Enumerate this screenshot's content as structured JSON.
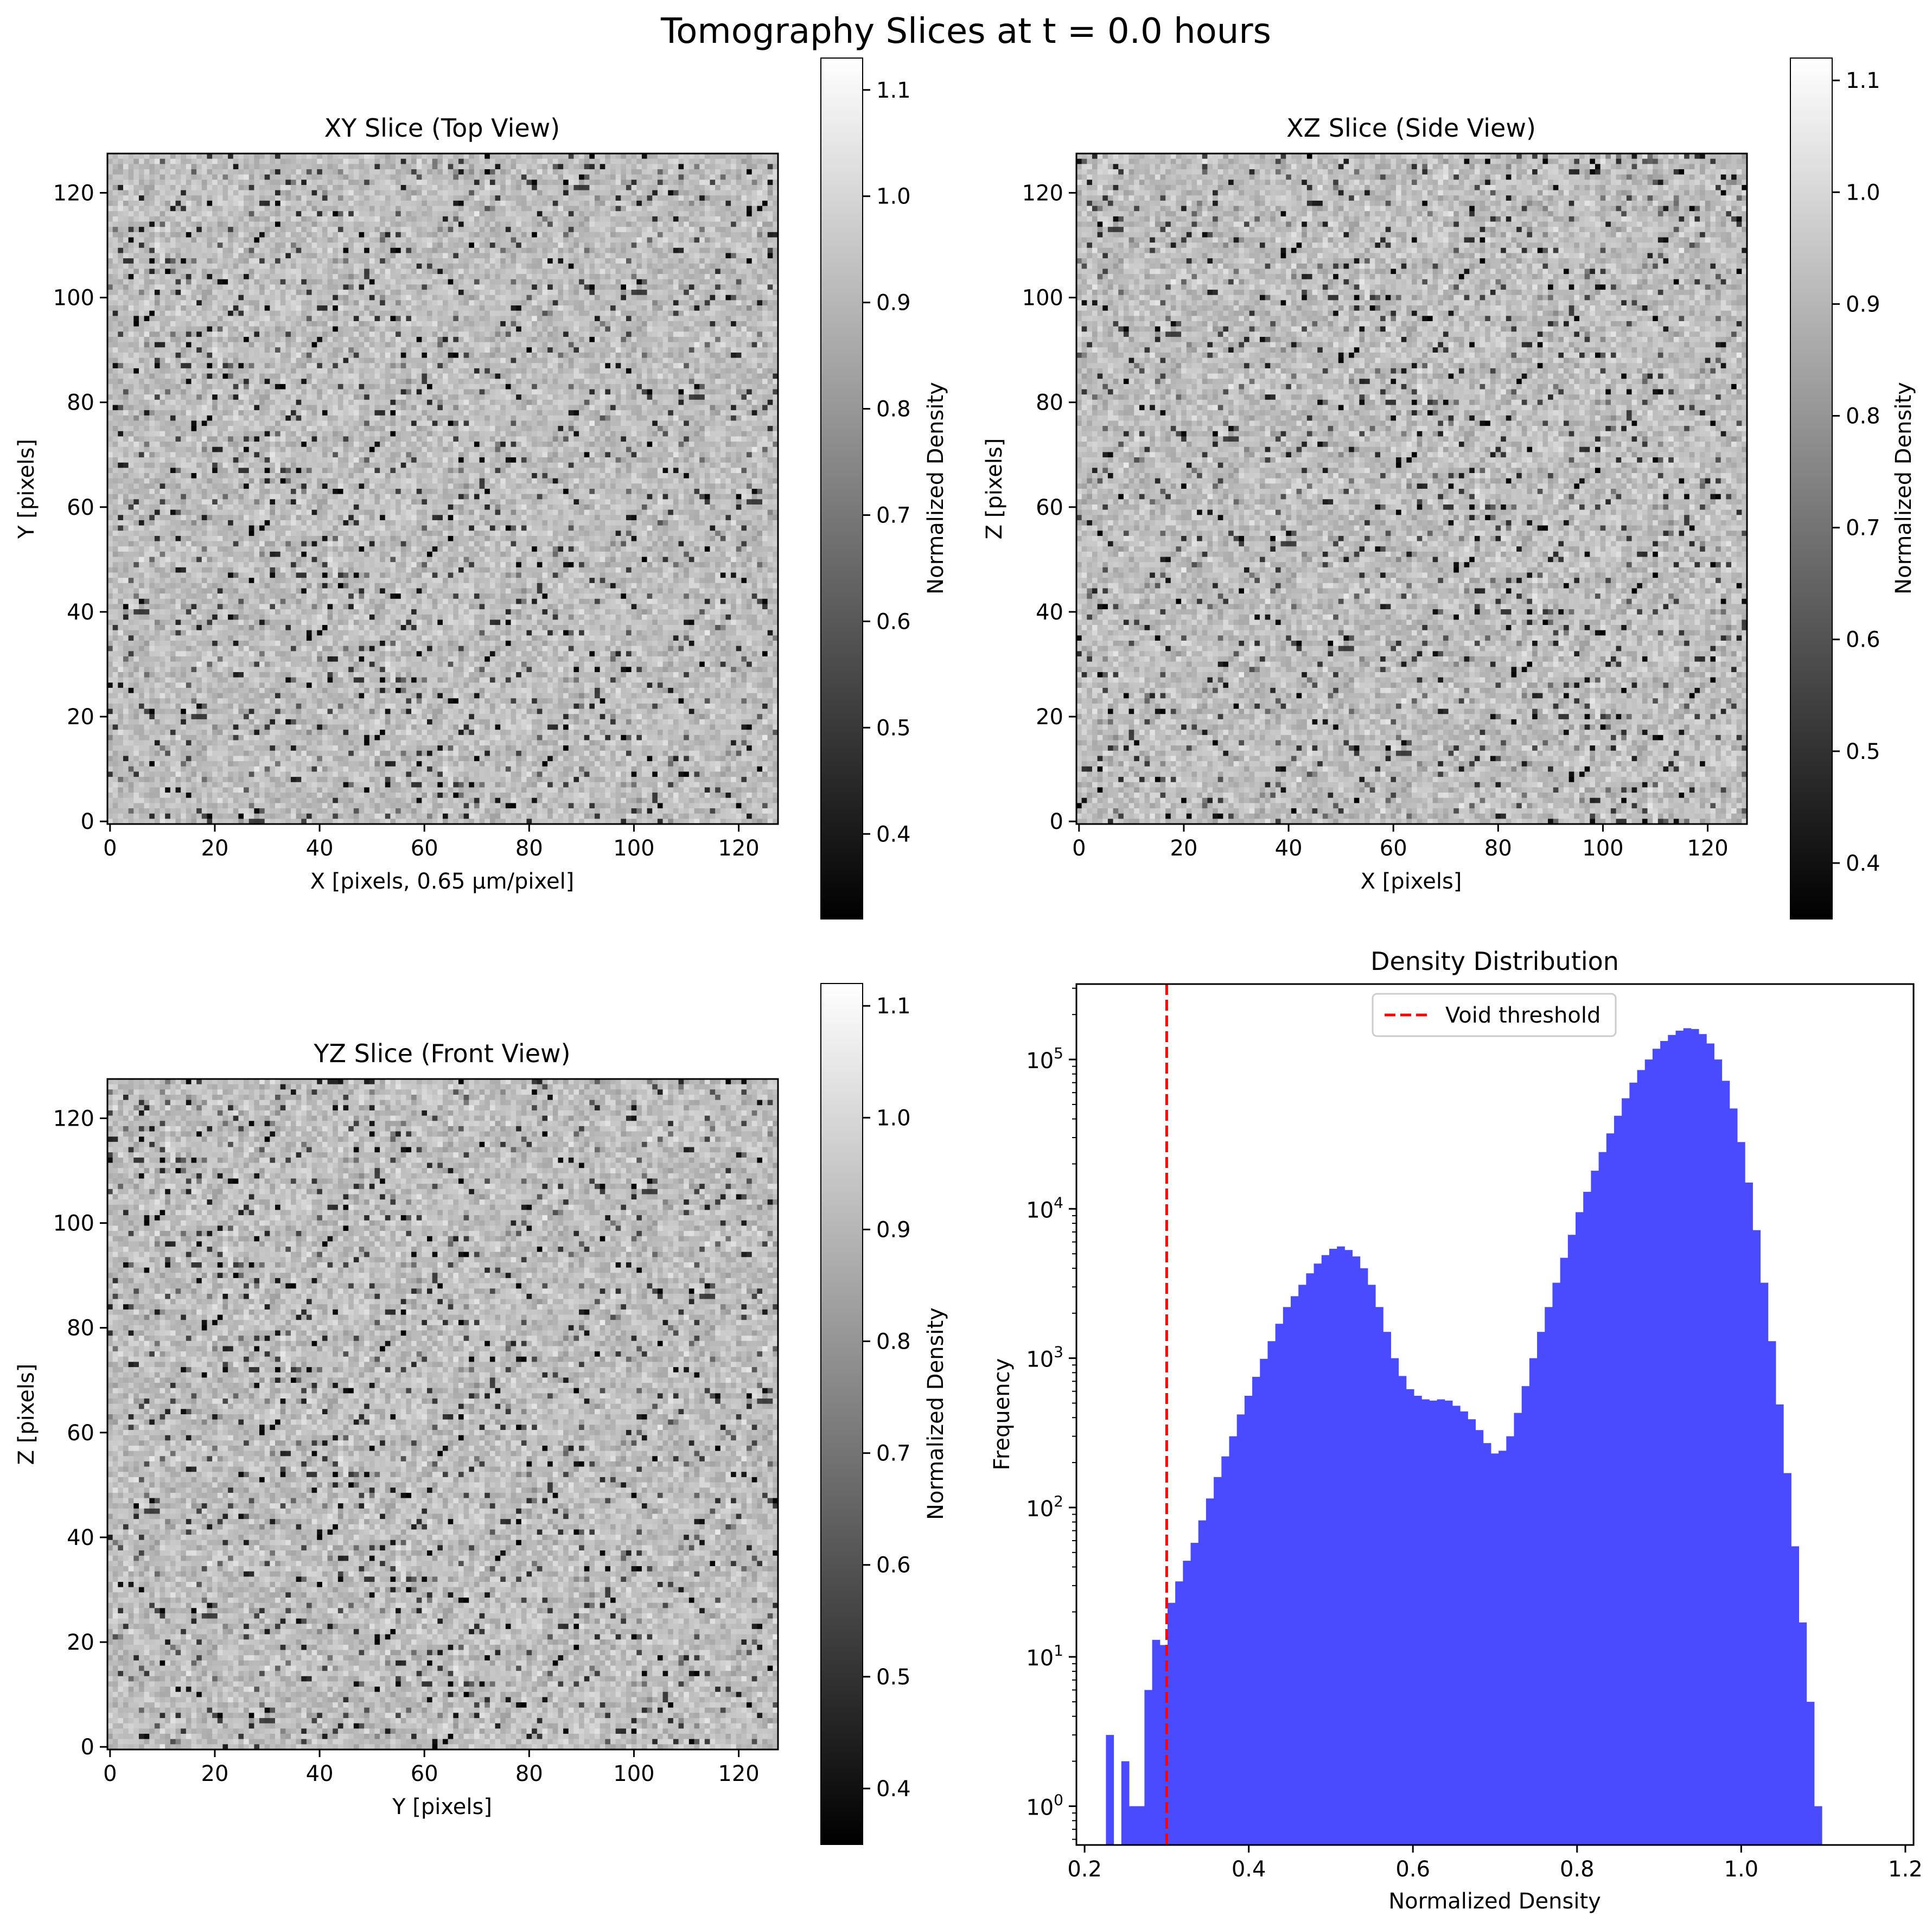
{
  "suptitle": "Tomography Slices at t = 0.0 hours",
  "chart_data": [
    {
      "type": "heatmap",
      "title": "XY Slice (Top View)",
      "xlabel": "X [pixels, 0.65 μm/pixel]",
      "ylabel": "Y [pixels]",
      "xlim": [
        0,
        127
      ],
      "ylim": [
        0,
        127
      ],
      "xticks": [
        0,
        20,
        40,
        60,
        80,
        100,
        120
      ],
      "yticks": [
        0,
        20,
        40,
        60,
        80,
        100,
        120
      ],
      "colormap": "gray",
      "grid_size": [
        128,
        128
      ],
      "colorbar": {
        "label": "Normalized Density",
        "range": [
          0.32,
          1.13
        ],
        "ticks": [
          0.4,
          0.5,
          0.6,
          0.7,
          0.8,
          0.9,
          1.0,
          1.1
        ]
      }
    },
    {
      "type": "heatmap",
      "title": "XZ Slice (Side View)",
      "xlabel": "X [pixels]",
      "ylabel": "Z [pixels]",
      "xlim": [
        0,
        127
      ],
      "ylim": [
        0,
        127
      ],
      "xticks": [
        0,
        20,
        40,
        60,
        80,
        100,
        120
      ],
      "yticks": [
        0,
        20,
        40,
        60,
        80,
        100,
        120
      ],
      "colormap": "gray",
      "grid_size": [
        128,
        128
      ],
      "colorbar": {
        "label": "Normalized Density",
        "range": [
          0.35,
          1.12
        ],
        "ticks": [
          0.4,
          0.5,
          0.6,
          0.7,
          0.8,
          0.9,
          1.0,
          1.1
        ]
      }
    },
    {
      "type": "heatmap",
      "title": "YZ Slice (Front View)",
      "xlabel": "Y [pixels]",
      "ylabel": "Z [pixels]",
      "xlim": [
        0,
        127
      ],
      "ylim": [
        0,
        127
      ],
      "xticks": [
        0,
        20,
        40,
        60,
        80,
        100,
        120
      ],
      "yticks": [
        0,
        20,
        40,
        60,
        80,
        100,
        120
      ],
      "colormap": "gray",
      "grid_size": [
        128,
        128
      ],
      "colorbar": {
        "label": "Normalized Density",
        "range": [
          0.35,
          1.12
        ],
        "ticks": [
          0.4,
          0.5,
          0.6,
          0.7,
          0.8,
          0.9,
          1.0,
          1.1
        ]
      }
    },
    {
      "type": "bar",
      "title": "Density Distribution",
      "xlabel": "Normalized Density",
      "ylabel": "Frequency",
      "yscale": "log",
      "xlim": [
        0.19,
        1.21
      ],
      "ylim": [
        0.55,
        320000
      ],
      "xticks": [
        0.2,
        0.4,
        0.6,
        0.8,
        1.0,
        1.2
      ],
      "ytick_labels": [
        "10^0",
        "10^1",
        "10^2",
        "10^3",
        "10^4",
        "10^5"
      ],
      "bin_start": 0.226,
      "bin_width": 0.00938,
      "values": [
        3,
        0,
        2,
        1,
        1,
        6,
        13,
        12,
        23,
        32,
        44,
        58,
        82,
        115,
        160,
        220,
        300,
        420,
        560,
        750,
        990,
        1300,
        1700,
        2200,
        2600,
        3100,
        3700,
        4300,
        4900,
        5400,
        5600,
        5300,
        4800,
        4000,
        3100,
        2200,
        1500,
        1000,
        760,
        620,
        560,
        530,
        520,
        530,
        520,
        480,
        440,
        390,
        330,
        270,
        230,
        240,
        300,
        430,
        650,
        1000,
        1500,
        2200,
        3200,
        4700,
        6700,
        9500,
        13000,
        18000,
        24000,
        32000,
        42000,
        55000,
        70000,
        85000,
        100000,
        118000,
        133000,
        146000,
        156000,
        162000,
        160000,
        148000,
        128000,
        100000,
        72000,
        47000,
        28000,
        15000,
        7200,
        3200,
        1300,
        490,
        170,
        55,
        17,
        5,
        1
      ],
      "series": [
        {
          "name": "Normalized Density",
          "color": "#4a4aff"
        }
      ],
      "threshold": {
        "name": "Void threshold",
        "x": 0.3,
        "color": "#ff0000",
        "style": "dashed"
      },
      "legend_position": "upper center"
    }
  ]
}
